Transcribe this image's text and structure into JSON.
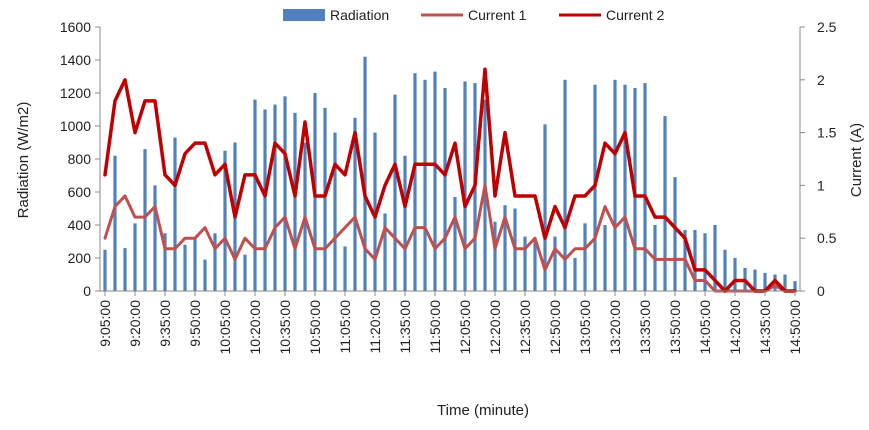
{
  "chart_data": {
    "type": "bar+line",
    "title": "",
    "xlabel": "Time (minute)",
    "ylabel_left": "Radiation (W/m2)",
    "ylabel_right": "Current (A)",
    "ylim_left": [
      0,
      1600
    ],
    "ylim_right": [
      0,
      2.5
    ],
    "yticks_left": [
      "0",
      "200",
      "400",
      "600",
      "800",
      "1000",
      "1200",
      "1400",
      "1600"
    ],
    "yticks_right": [
      "0",
      "0.5",
      "1",
      "1.5",
      "2",
      "2.5"
    ],
    "xtick_labels": [
      "9:05:00",
      "9:20:00",
      "9:35:00",
      "9:50:00",
      "10:05:00",
      "10:20:00",
      "10:35:00",
      "10:50:00",
      "11:05:00",
      "11:20:00",
      "11:35:00",
      "11:50:00",
      "12:05:00",
      "12:20:00",
      "12:35:00",
      "12:50:00",
      "13:05:00",
      "13:20:00",
      "13:35:00",
      "13:50:00",
      "14:05:00",
      "14:20:00",
      "14:35:00",
      "14:50:00"
    ],
    "x_start": "9:05:00",
    "x_interval_minutes": 5,
    "legend_position": "top-center",
    "gridlines": false,
    "colors": {
      "radiation": "#4f81bd",
      "current1": "#c0504d",
      "current2": "#c00000"
    },
    "series": [
      {
        "name": "Radiation",
        "type": "bar",
        "axis": "left",
        "values": [
          250,
          820,
          260,
          410,
          860,
          640,
          350,
          930,
          280,
          320,
          190,
          350,
          850,
          900,
          220,
          1160,
          1100,
          1130,
          1180,
          1080,
          900,
          1200,
          1110,
          960,
          270,
          1050,
          1420,
          960,
          470,
          1190,
          820,
          1320,
          1280,
          1330,
          1230,
          570,
          1270,
          1260,
          1160,
          420,
          520,
          500,
          330,
          320,
          1010,
          330,
          1280,
          200,
          410,
          1250,
          400,
          1280,
          1250,
          1230,
          1260,
          400,
          1060,
          690,
          370,
          370,
          350,
          400,
          250,
          200,
          140,
          130,
          110,
          100,
          100,
          60
        ]
      },
      {
        "name": "Current 1",
        "type": "line",
        "axis": "right",
        "values": [
          0.5,
          0.8,
          0.9,
          0.7,
          0.7,
          0.8,
          0.4,
          0.4,
          0.5,
          0.5,
          0.6,
          0.4,
          0.5,
          0.3,
          0.5,
          0.4,
          0.4,
          0.6,
          0.7,
          0.4,
          0.7,
          0.4,
          0.4,
          0.5,
          0.6,
          0.7,
          0.4,
          0.3,
          0.6,
          0.5,
          0.4,
          0.6,
          0.6,
          0.4,
          0.5,
          0.7,
          0.4,
          0.5,
          1.0,
          0.4,
          0.7,
          0.4,
          0.4,
          0.5,
          0.2,
          0.4,
          0.3,
          0.4,
          0.4,
          0.5,
          0.8,
          0.6,
          0.7,
          0.4,
          0.4,
          0.3,
          0.3,
          0.3,
          0.3,
          0.1,
          0.1,
          0.0,
          0.0,
          0.0,
          0.0,
          0.0,
          0.0,
          0.05,
          0.0,
          0.0
        ]
      },
      {
        "name": "Current 2",
        "type": "line",
        "axis": "right",
        "values": [
          1.1,
          1.8,
          2.0,
          1.5,
          1.8,
          1.8,
          1.1,
          1.0,
          1.3,
          1.4,
          1.4,
          1.1,
          1.2,
          0.7,
          1.1,
          1.1,
          0.9,
          1.4,
          1.3,
          0.9,
          1.6,
          0.9,
          0.9,
          1.2,
          1.1,
          1.5,
          0.9,
          0.7,
          1.0,
          1.2,
          0.8,
          1.2,
          1.2,
          1.2,
          1.1,
          1.4,
          0.8,
          1.0,
          2.1,
          0.9,
          1.5,
          0.9,
          0.9,
          0.9,
          0.5,
          0.8,
          0.6,
          0.9,
          0.9,
          1.0,
          1.4,
          1.3,
          1.5,
          0.9,
          0.9,
          0.7,
          0.7,
          0.6,
          0.5,
          0.2,
          0.2,
          0.1,
          0.0,
          0.1,
          0.1,
          0.0,
          0.0,
          0.1,
          0.0,
          0.0
        ]
      }
    ]
  }
}
